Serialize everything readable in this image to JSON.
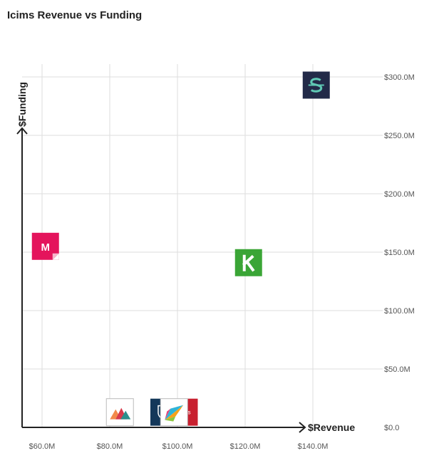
{
  "title": "Icims Revenue vs Funding",
  "chart_data": {
    "type": "scatter",
    "title": "Icims Revenue vs Funding",
    "xlabel": "$Revenue",
    "ylabel": "$Funding",
    "xlim": [
      50,
      150
    ],
    "ylim": [
      0,
      300
    ],
    "x_ticks": [
      {
        "value": 60,
        "label": "$60.0M"
      },
      {
        "value": 80,
        "label": "$80.0M"
      },
      {
        "value": 100,
        "label": "$100.0M"
      },
      {
        "value": 120,
        "label": "$120.0M"
      },
      {
        "value": 140,
        "label": "$140.0M"
      }
    ],
    "y_ticks": [
      {
        "value": 0,
        "label": "$0.0"
      },
      {
        "value": 50,
        "label": "$50.0M"
      },
      {
        "value": 100,
        "label": "$100.0M"
      },
      {
        "value": 150,
        "label": "$150.0M"
      },
      {
        "value": 200,
        "label": "$200.0M"
      },
      {
        "value": 250,
        "label": "$250.0M"
      },
      {
        "value": 300,
        "label": "$300.0M"
      }
    ],
    "grid": true,
    "points": [
      {
        "x": 61,
        "y": 155,
        "icon": "magenta-m-logo",
        "color": "#e4145c",
        "glyph": "M"
      },
      {
        "x": 83,
        "y": 13,
        "icon": "mountain-triangles-logo",
        "color": "#ffffff"
      },
      {
        "x": 96,
        "y": 13,
        "icon": "navy-shield-logo",
        "color": "#14385a"
      },
      {
        "x": 102,
        "y": 13,
        "icon": "red-icims-logo",
        "color": "#c8202f",
        "glyph": "icims"
      },
      {
        "x": 99,
        "y": 13,
        "icon": "colorful-arrow-logo",
        "color": "#ffffff"
      },
      {
        "x": 121,
        "y": 141,
        "icon": "green-k-logo",
        "color": "#3aa536",
        "glyph": "k"
      },
      {
        "x": 141,
        "y": 293,
        "icon": "navy-s-logo",
        "color": "#222a48",
        "glyph": "S"
      }
    ]
  }
}
